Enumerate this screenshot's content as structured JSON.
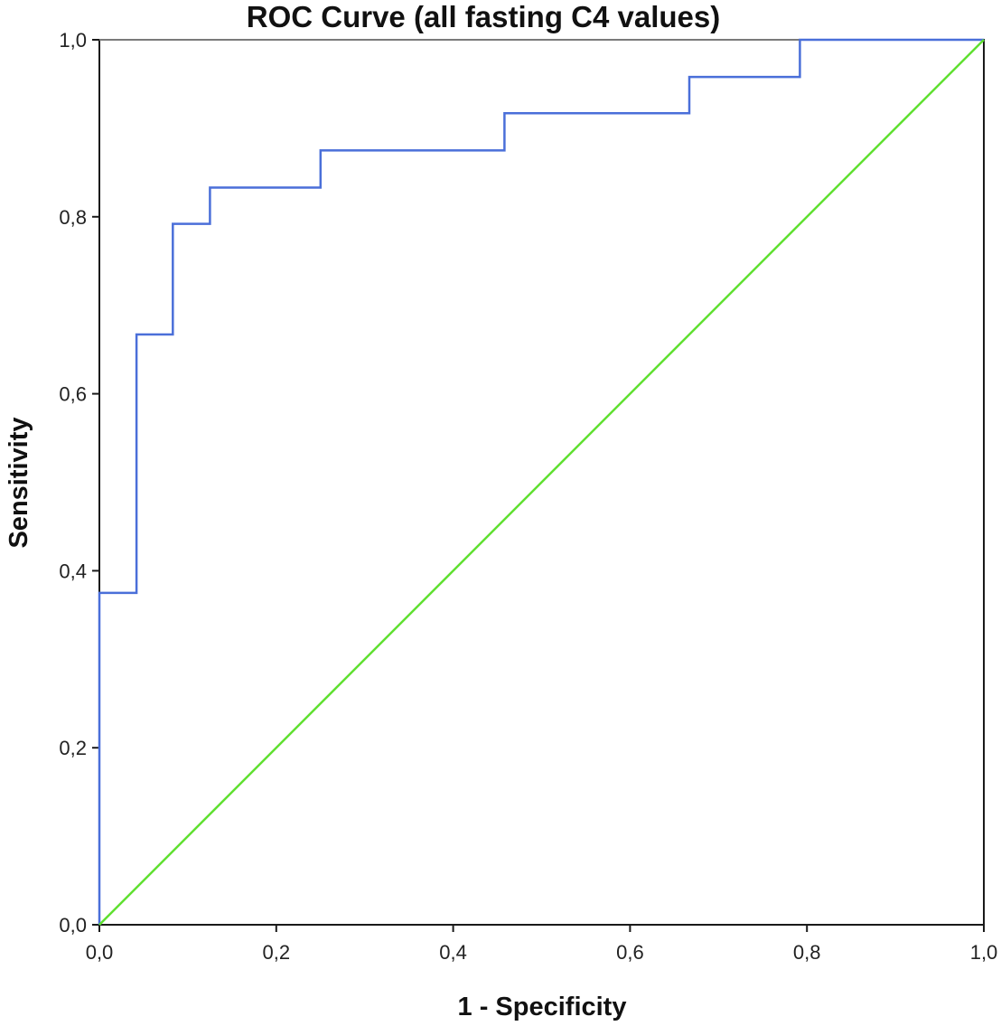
{
  "chart_data": {
    "type": "line",
    "title": "ROC Curve (all fasting C4 values)",
    "xlabel": "1 - Specificity",
    "ylabel": "Sensitivity",
    "xlim": [
      0,
      1
    ],
    "ylim": [
      0,
      1
    ],
    "x_ticks": [
      "0,0",
      "0,2",
      "0,4",
      "0,6",
      "0,8",
      "1,0"
    ],
    "y_ticks": [
      "0,0",
      "0,2",
      "0,4",
      "0,6",
      "0,8",
      "1,0"
    ],
    "grid": false,
    "series": [
      {
        "kind": "step",
        "color": "#4a6fd9",
        "points": [
          [
            0.0,
            0.0
          ],
          [
            0.0,
            0.375
          ],
          [
            0.042,
            0.375
          ],
          [
            0.042,
            0.667
          ],
          [
            0.083,
            0.667
          ],
          [
            0.083,
            0.792
          ],
          [
            0.125,
            0.792
          ],
          [
            0.125,
            0.833
          ],
          [
            0.25,
            0.833
          ],
          [
            0.25,
            0.875
          ],
          [
            0.458,
            0.875
          ],
          [
            0.458,
            0.917
          ],
          [
            0.667,
            0.917
          ],
          [
            0.667,
            0.958
          ],
          [
            0.792,
            0.958
          ],
          [
            0.792,
            1.0
          ],
          [
            1.0,
            1.0
          ]
        ]
      },
      {
        "kind": "reference",
        "color": "#5fe030",
        "points": [
          [
            0.0,
            0.0
          ],
          [
            1.0,
            1.0
          ]
        ]
      }
    ]
  }
}
